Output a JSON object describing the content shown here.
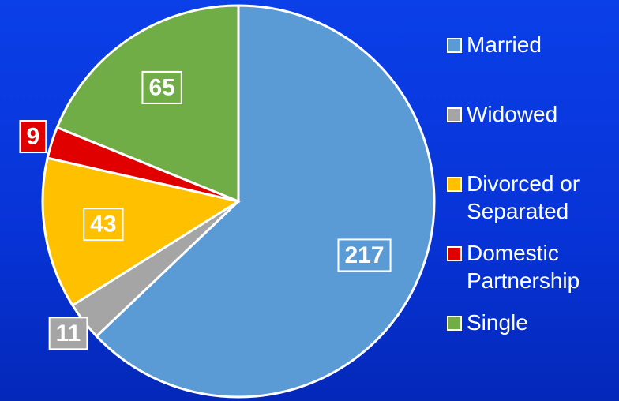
{
  "chart_data": {
    "type": "pie",
    "categories": [
      "Married",
      "Widowed",
      "Divorced or Separated",
      "Domestic Partnership",
      "Single"
    ],
    "values": [
      217,
      11,
      43,
      9,
      65
    ],
    "colors": [
      "#5b9bd5",
      "#a5a5a5",
      "#ffc000",
      "#e00000",
      "#70ad47"
    ],
    "legend": "right"
  }
}
